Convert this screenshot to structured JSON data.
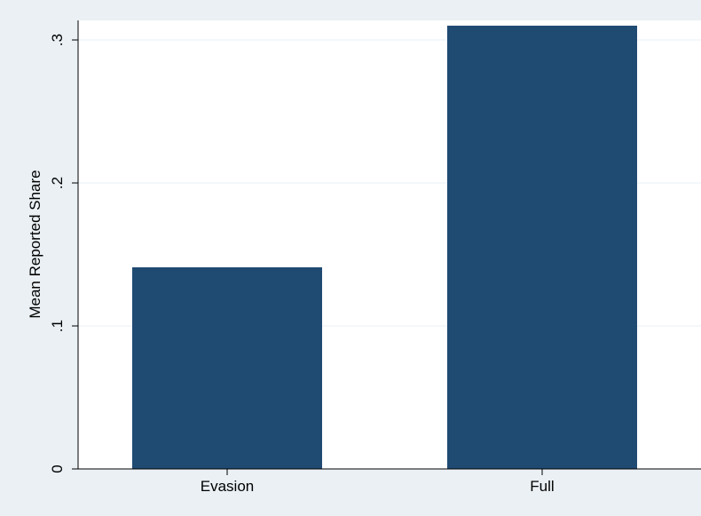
{
  "chart_data": {
    "type": "bar",
    "categories": [
      "Evasion",
      "Full"
    ],
    "values": [
      0.141,
      0.31
    ],
    "title": "",
    "xlabel": "",
    "ylabel": "Mean Reported Share",
    "ylim": [
      0,
      0.32
    ],
    "yticks": [
      0,
      0.1,
      0.2,
      0.3
    ],
    "ytick_labels": [
      "0",
      ".1",
      ".2",
      ".3"
    ],
    "grid": "horizontal",
    "bar_color": "#1f4a72",
    "background_color": "#eaf0f4",
    "plot_background_color": "#ffffff",
    "gridline_color": "#eaf0f4"
  }
}
